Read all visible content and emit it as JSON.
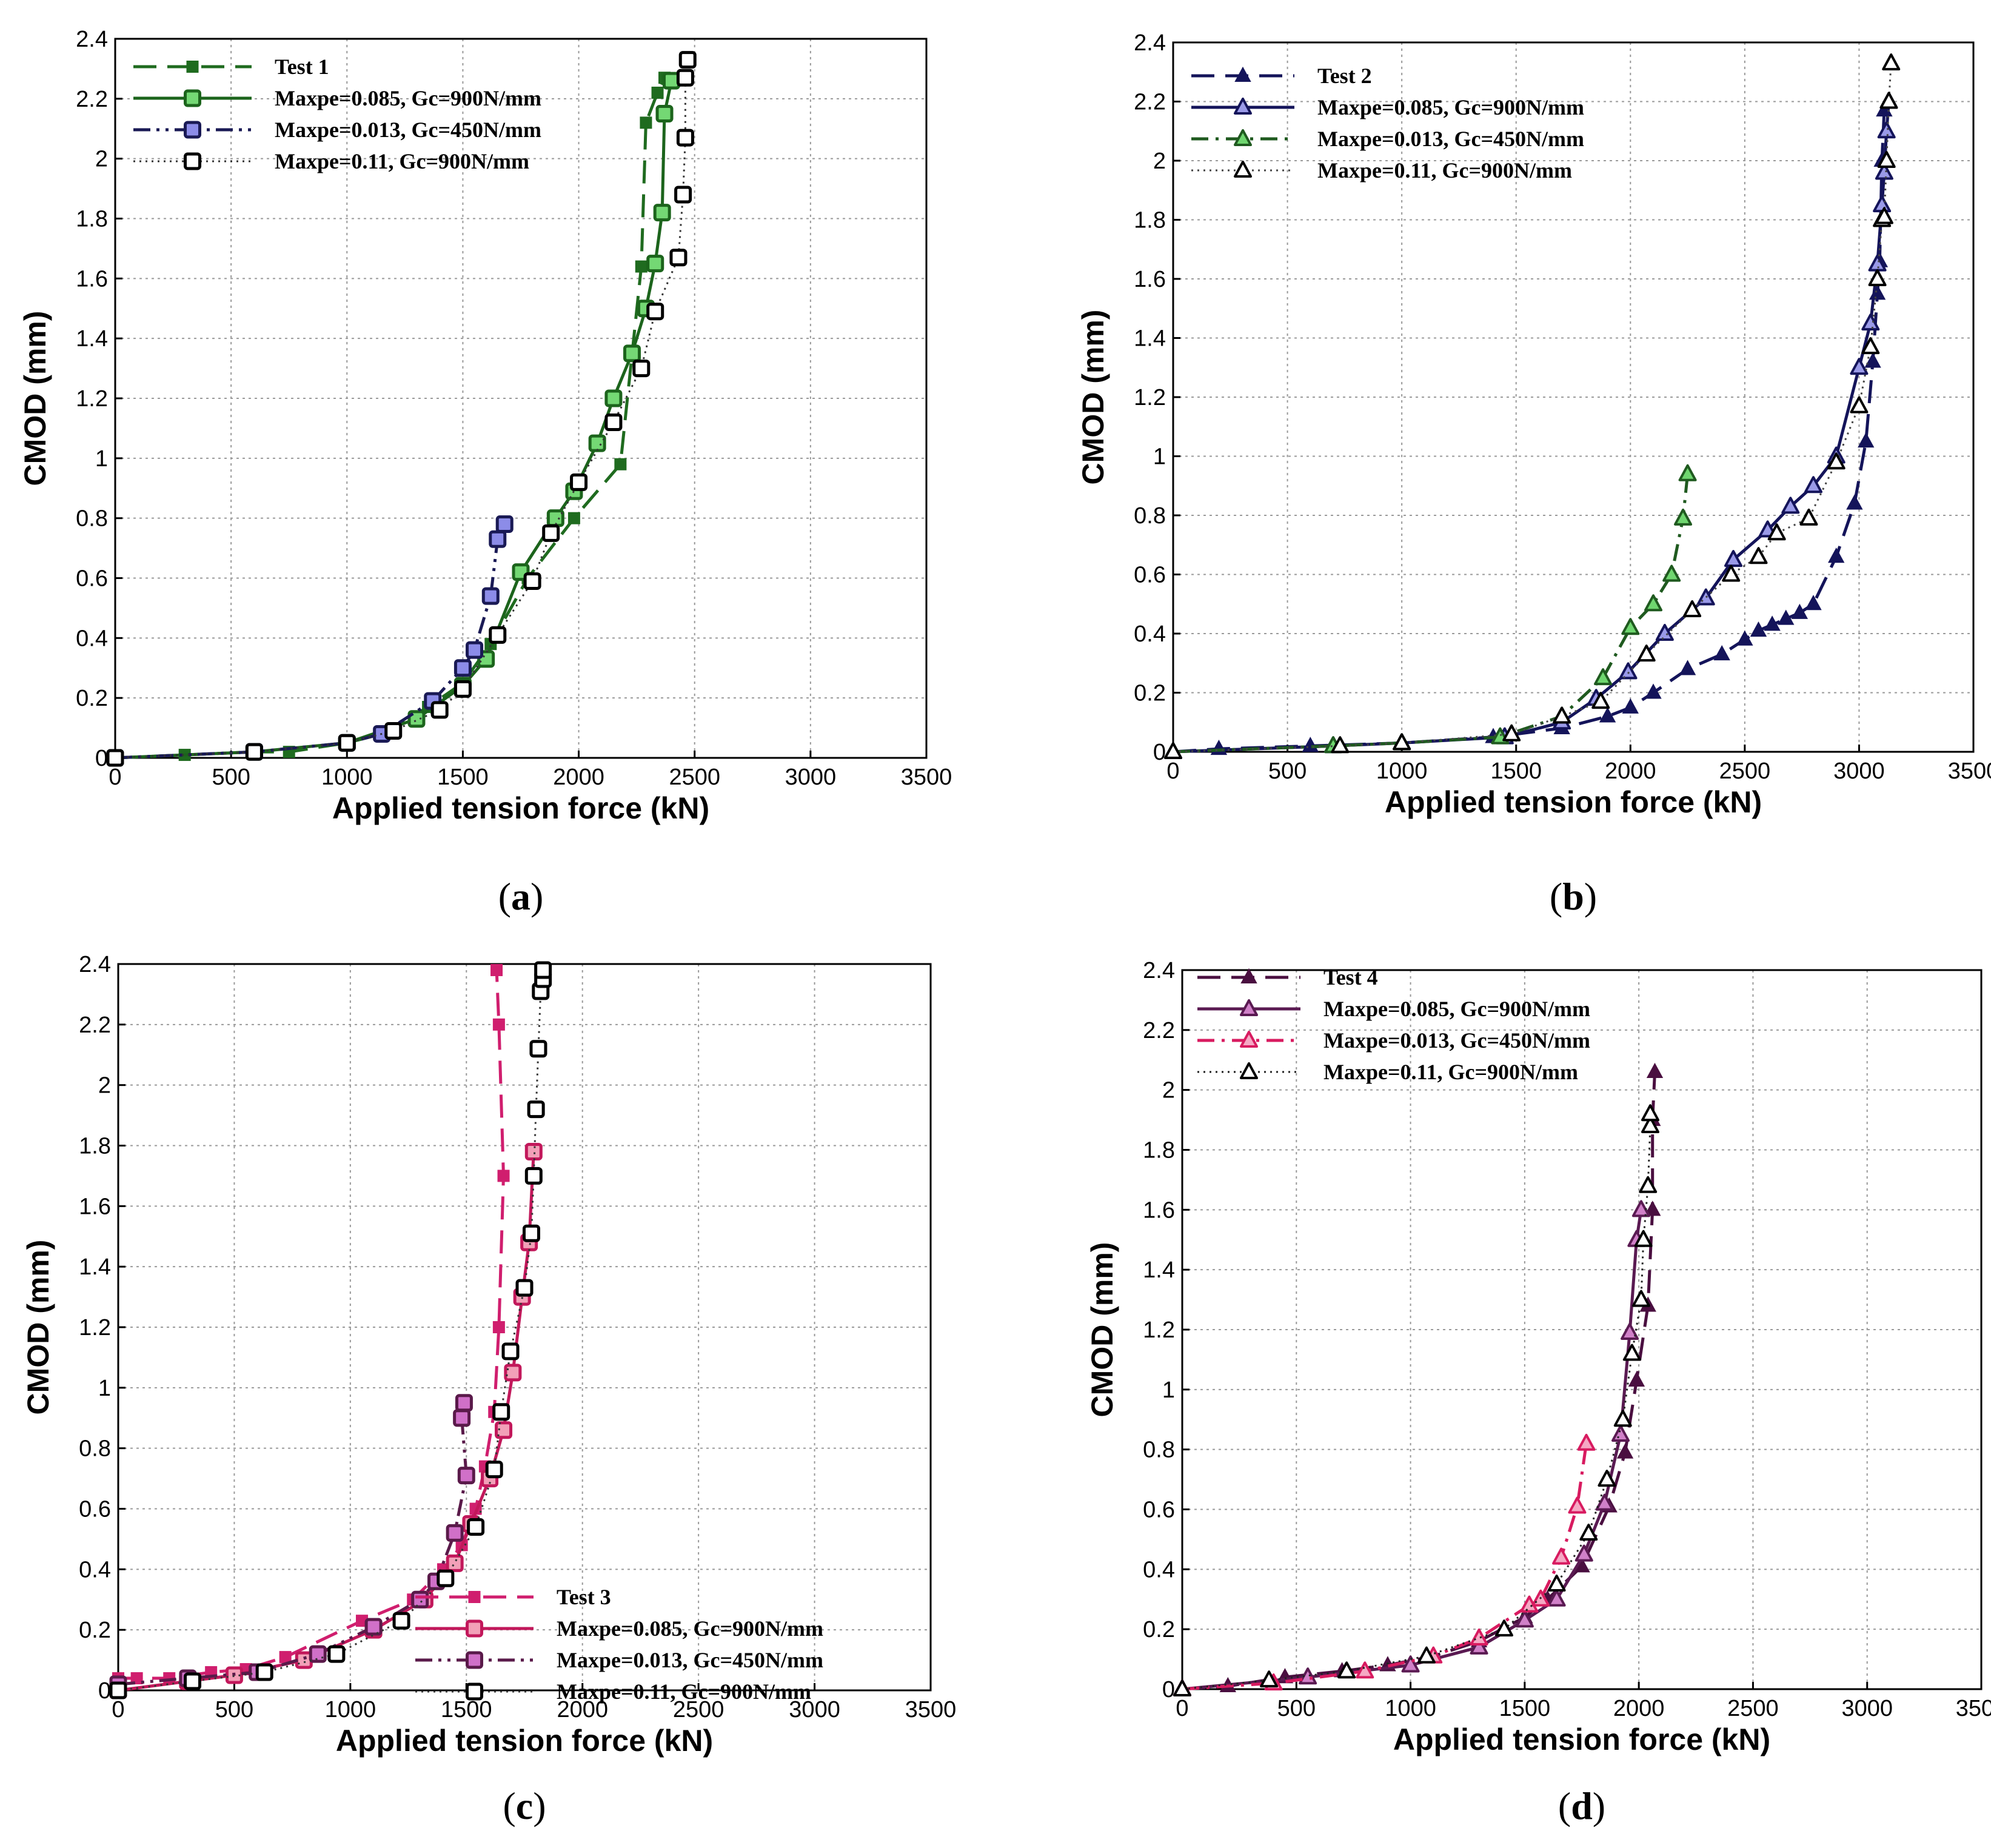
{
  "chart_data": [
    {
      "type": "line",
      "panel_label": "a",
      "xlabel": "Applied tension force (kN)",
      "ylabel": "CMOD (mm)",
      "xlim": [
        0,
        3500
      ],
      "ylim": [
        0,
        2.4
      ],
      "xticks": [
        "0",
        "500",
        "1000",
        "1500",
        "2000",
        "2500",
        "3000",
        "3500"
      ],
      "yticks": [
        "0",
        "0.2",
        "0.4",
        "0.6",
        "0.8",
        "1",
        "1.2",
        "1.4",
        "1.6",
        "1.8",
        "2",
        "2.2",
        "2.4"
      ],
      "grid": true,
      "legend_position": "top-left",
      "series": [
        {
          "name": "Test 1",
          "color": "#1f6b1f",
          "dash": "dash",
          "marker": "filled-square",
          "x": [
            0,
            300,
            600,
            750,
            1000,
            1150,
            1350,
            1500,
            1620,
            1780,
            1980,
            2180,
            2270,
            2290,
            2340,
            2370
          ],
          "y": [
            0,
            0.01,
            0.02,
            0.02,
            0.05,
            0.08,
            0.17,
            0.25,
            0.38,
            0.6,
            0.8,
            0.98,
            1.64,
            2.12,
            2.22,
            2.27
          ]
        },
        {
          "name": "Maxpe=0.085, Gc=900N/mm",
          "color": "#1c641c",
          "fill": "#74d874",
          "dash": "solid",
          "marker": "open-square",
          "x": [
            0,
            600,
            1000,
            1300,
            1500,
            1600,
            1750,
            1900,
            1980,
            2080,
            2150,
            2230,
            2290,
            2330,
            2360,
            2370,
            2400
          ],
          "y": [
            0,
            0.02,
            0.05,
            0.13,
            0.24,
            0.33,
            0.62,
            0.8,
            0.89,
            1.05,
            1.2,
            1.35,
            1.5,
            1.65,
            1.82,
            2.15,
            2.26
          ]
        },
        {
          "name": "Maxpe=0.013, Gc=450N/mm",
          "color": "#1a1a55",
          "fill": "#8c8ce8",
          "dash": "dashdotdot",
          "marker": "open-square",
          "x": [
            0,
            600,
            1000,
            1150,
            1370,
            1500,
            1550,
            1620,
            1650,
            1680
          ],
          "y": [
            0,
            0.02,
            0.05,
            0.08,
            0.19,
            0.3,
            0.36,
            0.54,
            0.73,
            0.78
          ]
        },
        {
          "name": "Maxpe=0.11, Gc=900N/mm",
          "color": "#333333",
          "fill": "#ffffff",
          "dash": "dot",
          "marker": "open-square-black",
          "x": [
            0,
            600,
            1000,
            1200,
            1400,
            1500,
            1650,
            1800,
            1880,
            2000,
            2150,
            2270,
            2330,
            2430,
            2450,
            2460,
            2460,
            2470
          ],
          "y": [
            0,
            0.02,
            0.05,
            0.09,
            0.16,
            0.23,
            0.41,
            0.59,
            0.75,
            0.92,
            1.12,
            1.3,
            1.49,
            1.67,
            1.88,
            2.07,
            2.27,
            2.33
          ]
        }
      ]
    },
    {
      "type": "line",
      "panel_label": "b",
      "xlabel": "Applied tension force (kN)",
      "ylabel": "CMOD (mm)",
      "xlim": [
        0,
        3500
      ],
      "ylim": [
        0,
        2.4
      ],
      "xticks": [
        "0",
        "500",
        "1000",
        "1500",
        "2000",
        "2500",
        "3000",
        "3500"
      ],
      "yticks": [
        "0",
        "0.2",
        "0.4",
        "0.6",
        "0.8",
        "1",
        "1.2",
        "1.4",
        "1.6",
        "1.8",
        "2",
        "2.2",
        "2.4"
      ],
      "grid": true,
      "legend_position": "top-left",
      "series": [
        {
          "name": "Test 2",
          "color": "#14145a",
          "dash": "dash",
          "marker": "filled-triangle",
          "x": [
            0,
            200,
            600,
            1000,
            1400,
            1700,
            1900,
            2000,
            2100,
            2250,
            2400,
            2500,
            2560,
            2620,
            2680,
            2740,
            2800,
            2900,
            2980,
            3030,
            3060,
            3080,
            3090,
            3100,
            3110
          ],
          "y": [
            0,
            0.01,
            0.02,
            0.03,
            0.05,
            0.08,
            0.12,
            0.15,
            0.2,
            0.28,
            0.33,
            0.38,
            0.41,
            0.43,
            0.45,
            0.47,
            0.5,
            0.66,
            0.84,
            1.05,
            1.32,
            1.55,
            1.66,
            2.0,
            2.17
          ]
        },
        {
          "name": "Maxpe=0.085, Gc=900N/mm",
          "color": "#14145a",
          "fill": "#9a9ae8",
          "dash": "solid",
          "marker": "open-triangle",
          "x": [
            0,
            700,
            1000,
            1450,
            1700,
            1850,
            1990,
            2150,
            2330,
            2450,
            2600,
            2700,
            2800,
            2900,
            3000,
            3050,
            3080,
            3100,
            3110,
            3120,
            3130
          ],
          "y": [
            0,
            0.02,
            0.03,
            0.05,
            0.1,
            0.18,
            0.27,
            0.4,
            0.52,
            0.65,
            0.75,
            0.83,
            0.9,
            1.0,
            1.3,
            1.45,
            1.65,
            1.85,
            1.96,
            2.1,
            2.2
          ]
        },
        {
          "name": "Maxpe=0.013, Gc=450N/mm",
          "color": "#1f5a1f",
          "fill": "#6fd66f",
          "dash": "dashdot",
          "marker": "open-triangle",
          "x": [
            0,
            700,
            1000,
            1430,
            1700,
            1880,
            2000,
            2100,
            2180,
            2230,
            2250
          ],
          "y": [
            0,
            0.02,
            0.03,
            0.05,
            0.12,
            0.25,
            0.42,
            0.5,
            0.6,
            0.79,
            0.94
          ]
        },
        {
          "name": "Maxpe=0.11, Gc=900N/mm",
          "color": "#444444",
          "fill": "#ffffff",
          "dash": "dot",
          "marker": "open-triangle-black",
          "x": [
            0,
            730,
            1000,
            1480,
            1700,
            1870,
            2070,
            2270,
            2440,
            2560,
            2640,
            2780,
            2900,
            3000,
            3050,
            3080,
            3100,
            3110,
            3120,
            3130,
            3140
          ],
          "y": [
            0,
            0.02,
            0.03,
            0.06,
            0.12,
            0.17,
            0.33,
            0.48,
            0.6,
            0.66,
            0.74,
            0.79,
            0.98,
            1.17,
            1.37,
            1.6,
            1.8,
            1.81,
            2.0,
            2.2,
            2.33
          ]
        }
      ]
    },
    {
      "type": "line",
      "panel_label": "c",
      "xlabel": "Applied tension force (kN)",
      "ylabel": "CMOD (mm)",
      "xlim": [
        0,
        3500
      ],
      "ylim": [
        0,
        2.4
      ],
      "xticks": [
        "0",
        "500",
        "1000",
        "1500",
        "2000",
        "2500",
        "3000",
        "3500"
      ],
      "yticks": [
        "0",
        "0.2",
        "0.4",
        "0.6",
        "0.8",
        "1",
        "1.2",
        "1.4",
        "1.6",
        "1.8",
        "2",
        "2.2",
        "2.4"
      ],
      "grid": true,
      "legend_position": "bottom-right",
      "series": [
        {
          "name": "Test 3",
          "color": "#d01e6e",
          "dash": "dash",
          "marker": "filled-square",
          "x": [
            0,
            80,
            220,
            400,
            550,
            720,
            1050,
            1270,
            1400,
            1480,
            1540,
            1580,
            1620,
            1640,
            1660,
            1640,
            1630
          ],
          "y": [
            0.04,
            0.04,
            0.04,
            0.06,
            0.07,
            0.11,
            0.23,
            0.3,
            0.4,
            0.48,
            0.6,
            0.74,
            0.92,
            1.2,
            1.7,
            2.2,
            2.38
          ]
        },
        {
          "name": "Maxpe=0.085, Gc=900N/mm",
          "color": "#c2185b",
          "fill": "#f2a0b8",
          "dash": "solid",
          "marker": "open-square",
          "x": [
            0,
            300,
            500,
            800,
            1100,
            1320,
            1450,
            1520,
            1600,
            1660,
            1700,
            1740,
            1770,
            1790
          ],
          "y": [
            0,
            0.03,
            0.05,
            0.1,
            0.2,
            0.3,
            0.42,
            0.55,
            0.7,
            0.86,
            1.05,
            1.3,
            1.48,
            1.78
          ]
        },
        {
          "name": "Maxpe=0.013, Gc=450N/mm",
          "color": "#5a1a4a",
          "fill": "#d070c8",
          "dash": "dashdotdot",
          "marker": "open-square",
          "x": [
            0,
            300,
            600,
            860,
            1100,
            1300,
            1370,
            1450,
            1500,
            1480,
            1490
          ],
          "y": [
            0.02,
            0.04,
            0.06,
            0.12,
            0.21,
            0.3,
            0.36,
            0.52,
            0.71,
            0.9,
            0.95
          ]
        },
        {
          "name": "Maxpe=0.11, Gc=900N/mm",
          "color": "#333333",
          "fill": "#ffffff",
          "dash": "dot",
          "marker": "open-square-black",
          "x": [
            0,
            320,
            630,
            940,
            1220,
            1410,
            1540,
            1620,
            1650,
            1690,
            1750,
            1780,
            1790,
            1800,
            1810,
            1820,
            1830,
            1830
          ],
          "y": [
            0,
            0.03,
            0.06,
            0.12,
            0.23,
            0.37,
            0.54,
            0.73,
            0.92,
            1.12,
            1.33,
            1.51,
            1.7,
            1.92,
            2.12,
            2.31,
            2.35,
            2.38
          ]
        }
      ]
    },
    {
      "type": "line",
      "panel_label": "d",
      "xlabel": "Applied tension force (kN)",
      "ylabel": "CMOD (mm)",
      "xlim": [
        0,
        3500
      ],
      "ylim": [
        0,
        2.4
      ],
      "xticks": [
        "0",
        "500",
        "1000",
        "1500",
        "2000",
        "2500",
        "3000",
        "3500"
      ],
      "yticks": [
        "0",
        "0.2",
        "0.4",
        "0.6",
        "0.8",
        "1",
        "1.2",
        "1.4",
        "1.6",
        "1.8",
        "2",
        "2.2",
        "2.4"
      ],
      "grid": true,
      "legend_position": "top-left",
      "series": [
        {
          "name": "Test 4",
          "color": "#4a0f40",
          "dash": "dash",
          "marker": "filled-triangle",
          "x": [
            0,
            200,
            450,
            700,
            900,
            1100,
            1300,
            1500,
            1600,
            1750,
            1870,
            1940,
            1990,
            2040,
            2060,
            2060,
            2070
          ],
          "y": [
            0,
            0.01,
            0.04,
            0.06,
            0.08,
            0.11,
            0.16,
            0.24,
            0.3,
            0.41,
            0.61,
            0.79,
            1.03,
            1.28,
            1.6,
            1.9,
            2.06
          ]
        },
        {
          "name": "Maxpe=0.085, Gc=900N/mm",
          "color": "#5a1a52",
          "fill": "#d080c8",
          "dash": "solid",
          "marker": "open-triangle",
          "x": [
            0,
            550,
            1000,
            1300,
            1500,
            1640,
            1760,
            1850,
            1920,
            1960,
            1990,
            2010
          ],
          "y": [
            0,
            0.04,
            0.08,
            0.14,
            0.23,
            0.3,
            0.45,
            0.62,
            0.85,
            1.19,
            1.5,
            1.6
          ]
        },
        {
          "name": "Maxpe=0.013, Gc=450N/mm",
          "color": "#d81b60",
          "fill": "#f5a8c4",
          "dash": "dashdot",
          "marker": "open-triangle",
          "x": [
            0,
            400,
            800,
            1100,
            1300,
            1520,
            1570,
            1660,
            1730,
            1770
          ],
          "y": [
            0,
            0.02,
            0.06,
            0.11,
            0.17,
            0.28,
            0.3,
            0.44,
            0.61,
            0.82
          ]
        },
        {
          "name": "Maxpe=0.11, Gc=900N/mm",
          "color": "#222222",
          "fill": "#ffffff",
          "dash": "dot",
          "marker": "open-triangle-black",
          "x": [
            0,
            380,
            720,
            1070,
            1410,
            1640,
            1780,
            1860,
            1930,
            1970,
            2010,
            2020,
            2040,
            2050,
            2050
          ],
          "y": [
            0,
            0.03,
            0.06,
            0.11,
            0.2,
            0.35,
            0.52,
            0.7,
            0.9,
            1.12,
            1.3,
            1.5,
            1.68,
            1.88,
            1.92
          ]
        }
      ]
    }
  ]
}
